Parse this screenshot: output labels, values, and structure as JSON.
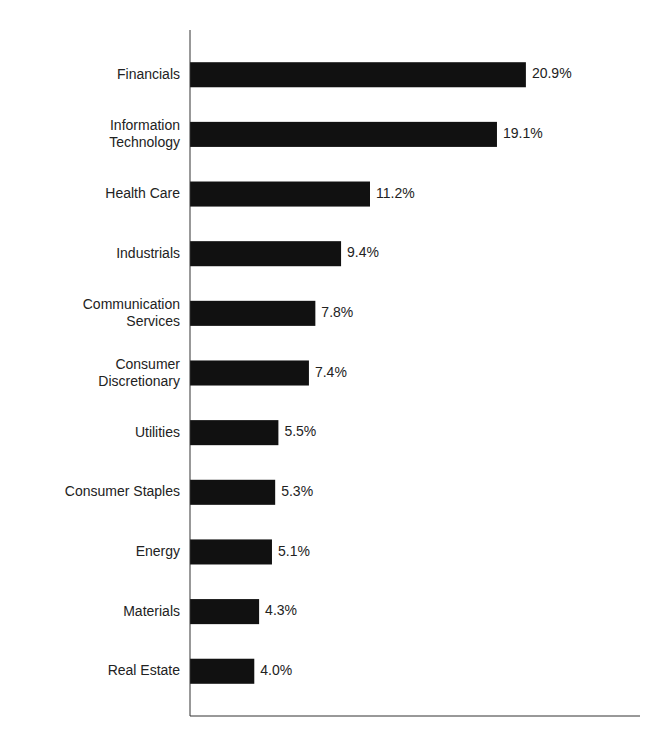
{
  "chart_data": {
    "type": "bar",
    "orientation": "horizontal",
    "categories": [
      "Real Estate",
      "Materials",
      "Energy",
      "Consumer Staples",
      "Utilities",
      "Consumer\nDiscretionary",
      "Communication\nServices",
      "Industrials",
      "Health Care",
      "Information\nTechnology",
      "Financials"
    ],
    "values": [
      4.0,
      4.3,
      5.1,
      5.3,
      5.5,
      7.4,
      7.8,
      9.4,
      11.2,
      19.1,
      20.9
    ],
    "value_labels": [
      "4.0%",
      "4.3%",
      "5.1%",
      "5.3%",
      "5.5%",
      "7.4%",
      "7.8%",
      "9.4%",
      "11.2%",
      "19.1%",
      "20.9%"
    ],
    "color": "#111111",
    "xlim": [
      0,
      28
    ],
    "data_labels": true,
    "tick_labels": "y",
    "grid": false
  }
}
